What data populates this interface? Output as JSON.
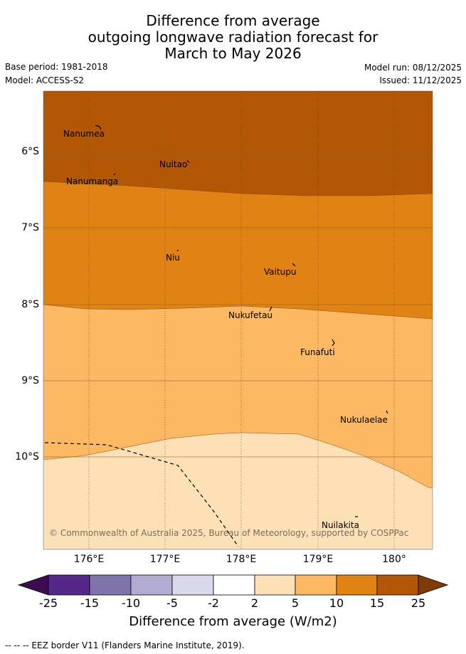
{
  "title": {
    "line1": "Difference from average",
    "line2": "outgoing longwave radiation forecast for",
    "line3": "March to May 2026"
  },
  "meta": {
    "base_period": "Base period: 1981-2018",
    "model": "Model: ACCESS-S2",
    "model_run": "Model run: 08/12/2025",
    "issued": "Issued: 11/12/2025"
  },
  "map": {
    "lat_ticks": [
      "6°S",
      "7°S",
      "8°S",
      "9°S",
      "10°S"
    ],
    "lon_ticks": [
      "176°E",
      "177°E",
      "178°E",
      "179°E",
      "180°"
    ],
    "islands": [
      {
        "name": "Nanumea"
      },
      {
        "name": "Nuitao"
      },
      {
        "name": "Nanumanga"
      },
      {
        "name": "Niu"
      },
      {
        "name": "Vaitupu"
      },
      {
        "name": "Nukufetau"
      },
      {
        "name": "Funafuti"
      },
      {
        "name": "Nukulaelae"
      },
      {
        "name": "Nuilakita"
      }
    ],
    "copyright": "© Commonwealth of Australia 2025, Bureau of Meteorology, supported by COSPPac",
    "colors": {
      "band_15_25": "#b25705",
      "band_10_15": "#e08214",
      "band_5_10": "#fdb863",
      "band_2_5": "#fee0b6"
    }
  },
  "colorbar": {
    "ticks": [
      "-25",
      "-15",
      "-10",
      "-5",
      "-2",
      "2",
      "5",
      "10",
      "15",
      "25"
    ],
    "colors": [
      "#3f0b4f",
      "#542788",
      "#8073ac",
      "#b2abd2",
      "#d8daeb",
      "#ffffff",
      "#fee0b6",
      "#fdb863",
      "#e08214",
      "#b35806",
      "#7f3b08"
    ],
    "label": "Difference from average (W/m2)"
  },
  "footnote": "--  --  -- EEZ border V11 (Flanders Marine Institute, 2019)."
}
